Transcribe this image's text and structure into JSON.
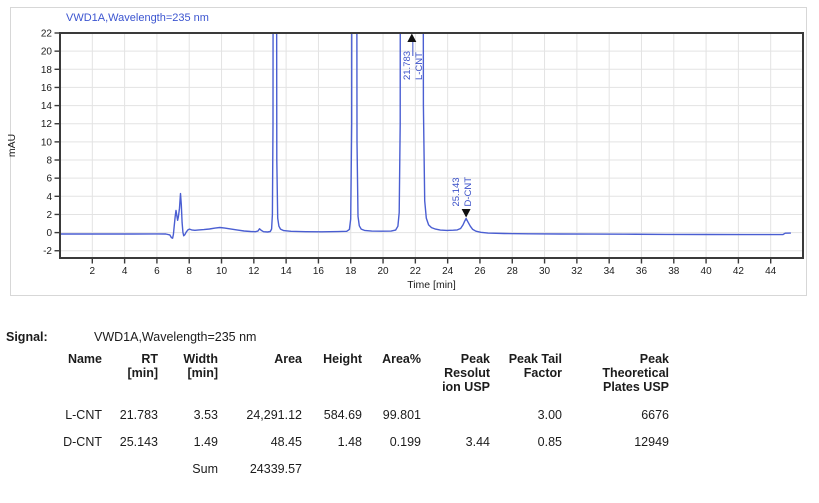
{
  "chart_data": {
    "type": "line",
    "title": "VWD1A,Wavelength=235 nm",
    "xlabel": "Time [min]",
    "ylabel": "mAU",
    "xlim": [
      0,
      46
    ],
    "ylim": [
      -2.8,
      22
    ],
    "grid": true,
    "x_ticks": [
      2,
      4,
      6,
      8,
      10,
      12,
      14,
      16,
      18,
      20,
      22,
      24,
      26,
      28,
      30,
      32,
      34,
      36,
      38,
      40,
      42,
      44
    ],
    "y_ticks": [
      -2,
      0,
      2,
      4,
      6,
      8,
      10,
      12,
      14,
      16,
      18,
      20,
      22
    ],
    "colors": {
      "trace": "#4a5ed2",
      "title": "#3c55d0",
      "peak_label": "#3a50c8",
      "grid": "#e3e3e3",
      "frame": "#3a3a3a",
      "text": "#1c1c1c",
      "outer_border": "#d7d7d7",
      "marker": "#101010"
    },
    "series": [
      {
        "name": "VWD1A,Wavelength=235 nm",
        "points": [
          [
            0.05,
            -0.15
          ],
          [
            1.5,
            -0.15
          ],
          [
            3,
            -0.16
          ],
          [
            4.5,
            -0.15
          ],
          [
            6,
            -0.14
          ],
          [
            6.55,
            -0.16
          ],
          [
            6.8,
            -0.25
          ],
          [
            6.9,
            -0.55
          ],
          [
            6.97,
            -0.62
          ],
          [
            7.02,
            -0.2
          ],
          [
            7.07,
            0.7
          ],
          [
            7.13,
            1.8
          ],
          [
            7.18,
            2.45
          ],
          [
            7.23,
            1.9
          ],
          [
            7.28,
            1.35
          ],
          [
            7.33,
            1.75
          ],
          [
            7.4,
            2.7
          ],
          [
            7.46,
            4.3
          ],
          [
            7.51,
            3.1
          ],
          [
            7.56,
            1.1
          ],
          [
            7.61,
            0.05
          ],
          [
            7.66,
            -0.35
          ],
          [
            7.73,
            -0.22
          ],
          [
            7.82,
            0.08
          ],
          [
            7.92,
            0.3
          ],
          [
            8.02,
            0.38
          ],
          [
            8.15,
            0.3
          ],
          [
            8.35,
            0.25
          ],
          [
            8.6,
            0.3
          ],
          [
            8.9,
            0.33
          ],
          [
            9.25,
            0.4
          ],
          [
            9.6,
            0.5
          ],
          [
            9.9,
            0.56
          ],
          [
            10.2,
            0.5
          ],
          [
            10.6,
            0.38
          ],
          [
            11,
            0.27
          ],
          [
            11.4,
            0.18
          ],
          [
            11.8,
            0.12
          ],
          [
            12.1,
            0.1
          ],
          [
            12.25,
            0.16
          ],
          [
            12.35,
            0.42
          ],
          [
            12.46,
            0.24
          ],
          [
            12.6,
            0.1
          ],
          [
            12.85,
            0.07
          ],
          [
            13.02,
            0.12
          ],
          [
            13.1,
            0.4
          ],
          [
            13.15,
            2
          ],
          [
            13.19,
            12
          ],
          [
            13.23,
            120
          ],
          [
            13.27,
            600
          ],
          [
            13.32,
            600
          ],
          [
            13.37,
            90
          ],
          [
            13.42,
            8
          ],
          [
            13.48,
            1.6
          ],
          [
            13.55,
            0.7
          ],
          [
            13.65,
            0.38
          ],
          [
            13.85,
            0.22
          ],
          [
            14.3,
            0.14
          ],
          [
            15.2,
            0.1
          ],
          [
            16.2,
            0.09
          ],
          [
            17.2,
            0.11
          ],
          [
            17.75,
            0.14
          ],
          [
            17.92,
            0.35
          ],
          [
            18.0,
            1.5
          ],
          [
            18.06,
            12
          ],
          [
            18.11,
            150
          ],
          [
            18.16,
            600
          ],
          [
            18.28,
            600
          ],
          [
            18.33,
            100
          ],
          [
            18.39,
            10
          ],
          [
            18.45,
            1.8
          ],
          [
            18.53,
            0.75
          ],
          [
            18.65,
            0.38
          ],
          [
            18.85,
            0.24
          ],
          [
            19.3,
            0.17
          ],
          [
            19.9,
            0.15
          ],
          [
            20.5,
            0.17
          ],
          [
            20.78,
            0.28
          ],
          [
            20.92,
            0.7
          ],
          [
            21.0,
            2.2
          ],
          [
            21.06,
            12
          ],
          [
            21.1,
            120
          ],
          [
            21.15,
            600
          ],
          [
            22.38,
            600
          ],
          [
            22.44,
            100
          ],
          [
            22.5,
            14
          ],
          [
            22.58,
            3.5
          ],
          [
            22.68,
            1.6
          ],
          [
            22.82,
            0.85
          ],
          [
            23.0,
            0.55
          ],
          [
            23.25,
            0.38
          ],
          [
            23.55,
            0.28
          ],
          [
            23.95,
            0.24
          ],
          [
            24.35,
            0.26
          ],
          [
            24.6,
            0.3
          ],
          [
            24.8,
            0.45
          ],
          [
            24.95,
            0.85
          ],
          [
            25.05,
            1.25
          ],
          [
            25.14,
            1.55
          ],
          [
            25.25,
            1.2
          ],
          [
            25.4,
            0.7
          ],
          [
            25.55,
            0.35
          ],
          [
            25.75,
            0.15
          ],
          [
            26.05,
            0.03
          ],
          [
            26.5,
            -0.05
          ],
          [
            27.5,
            -0.1
          ],
          [
            29,
            -0.13
          ],
          [
            31,
            -0.16
          ],
          [
            33,
            -0.17
          ],
          [
            35,
            -0.18
          ],
          [
            37.5,
            -0.2
          ],
          [
            40,
            -0.21
          ],
          [
            42.5,
            -0.22
          ],
          [
            44.75,
            -0.22
          ],
          [
            44.9,
            -0.07
          ],
          [
            45.25,
            -0.06
          ]
        ]
      }
    ],
    "peak_markers": [
      {
        "time": 21.783,
        "label_rt": "21.783",
        "label_name": "L-CNT",
        "clipped": true
      },
      {
        "time": 25.143,
        "label_rt": "25.143",
        "label_name": "D-CNT",
        "clipped": false,
        "apex_mau": 1.55
      }
    ]
  },
  "signal": {
    "label": "Signal:",
    "value": "VWD1A,Wavelength=235 nm"
  },
  "table": {
    "headers": {
      "name": "Name",
      "rt": "RT\n[min]",
      "width": "Width\n[min]",
      "area": "Area",
      "height": "Height",
      "area_pct": "Area%",
      "resolution": "Peak\nResolut\nion USP",
      "tail": "Peak Tail\nFactor",
      "plates": "Peak\nTheoretical\nPlates USP"
    },
    "rows": [
      {
        "name": "L-CNT",
        "rt": "21.783",
        "width": "3.53",
        "area": "24,291.12",
        "height": "584.69",
        "area_pct": "99.801",
        "resolution": "",
        "tail": "3.00",
        "plates": "6676"
      },
      {
        "name": "D-CNT",
        "rt": "25.143",
        "width": "1.49",
        "area": "48.45",
        "height": "1.48",
        "area_pct": "0.199",
        "resolution": "3.44",
        "tail": "0.85",
        "plates": "12949"
      }
    ],
    "sum_row": {
      "label": "Sum",
      "area": "24339.57"
    }
  }
}
